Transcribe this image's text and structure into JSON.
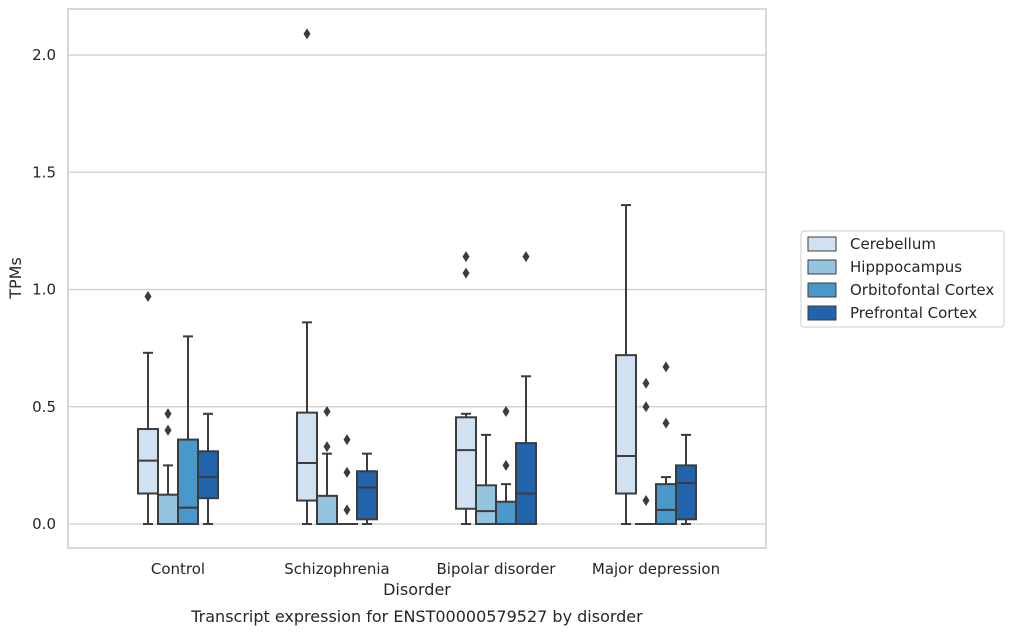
{
  "chart_data": {
    "type": "box",
    "title": "",
    "caption": "Transcript expression for ENST00000579527 by disorder",
    "xlabel": "Disorder",
    "ylabel": "TPMs",
    "ylim": [
      -0.1,
      2.2
    ],
    "yticks": [
      "0.0",
      "0.5",
      "1.0",
      "1.5",
      "2.0"
    ],
    "ytick_values": [
      0.0,
      0.5,
      1.0,
      1.5,
      2.0
    ],
    "grid": true,
    "legend_position": "right",
    "categories": [
      "Control",
      "Schizophrenia",
      "Bipolar disorder",
      "Major depression"
    ],
    "series": [
      {
        "name": "Cerebellum",
        "color": "#d0e1f2",
        "boxes": [
          {
            "whislo": 0.0,
            "q1": 0.13,
            "med": 0.27,
            "q3": 0.405,
            "whishi": 0.73,
            "fliers": [
              0.97
            ]
          },
          {
            "whislo": 0.0,
            "q1": 0.1,
            "med": 0.26,
            "q3": 0.475,
            "whishi": 0.86,
            "fliers": [
              2.09
            ]
          },
          {
            "whislo": 0.0,
            "q1": 0.065,
            "med": 0.315,
            "q3": 0.455,
            "whishi": 0.47,
            "fliers": [
              1.07,
              1.14
            ]
          },
          {
            "whislo": 0.0,
            "q1": 0.13,
            "med": 0.29,
            "q3": 0.72,
            "whishi": 1.36,
            "fliers": []
          }
        ]
      },
      {
        "name": "Hipppocampus",
        "color": "#94c4df",
        "boxes": [
          {
            "whislo": 0.0,
            "q1": 0.0,
            "med": 0.0,
            "q3": 0.125,
            "whishi": 0.25,
            "fliers": [
              0.4,
              0.47
            ]
          },
          {
            "whislo": 0.0,
            "q1": 0.0,
            "med": 0.0,
            "q3": 0.12,
            "whishi": 0.3,
            "fliers": [
              0.33,
              0.48
            ]
          },
          {
            "whislo": 0.0,
            "q1": 0.0,
            "med": 0.055,
            "q3": 0.165,
            "whishi": 0.38,
            "fliers": []
          },
          {
            "whislo": 0.0,
            "q1": 0.0,
            "med": 0.0,
            "q3": 0.0,
            "whishi": 0.0,
            "fliers": [
              0.1,
              0.5,
              0.6
            ]
          }
        ]
      },
      {
        "name": "Orbitofontal Cortex",
        "color": "#4a98c9",
        "boxes": [
          {
            "whislo": 0.0,
            "q1": 0.0,
            "med": 0.07,
            "q3": 0.36,
            "whishi": 0.8,
            "fliers": []
          },
          {
            "whislo": 0.0,
            "q1": 0.0,
            "med": 0.0,
            "q3": 0.0,
            "whishi": 0.0,
            "fliers": [
              0.06,
              0.22,
              0.36
            ]
          },
          {
            "whislo": 0.0,
            "q1": 0.0,
            "med": 0.0,
            "q3": 0.095,
            "whishi": 0.17,
            "fliers": [
              0.25,
              0.48
            ]
          },
          {
            "whislo": 0.0,
            "q1": 0.0,
            "med": 0.06,
            "q3": 0.17,
            "whishi": 0.2,
            "fliers": [
              0.43,
              0.67
            ]
          }
        ]
      },
      {
        "name": "Prefrontal Cortex",
        "color": "#2164ab",
        "boxes": [
          {
            "whislo": 0.0,
            "q1": 0.11,
            "med": 0.2,
            "q3": 0.31,
            "whishi": 0.47,
            "fliers": []
          },
          {
            "whislo": 0.0,
            "q1": 0.02,
            "med": 0.155,
            "q3": 0.225,
            "whishi": 0.3,
            "fliers": []
          },
          {
            "whislo": 0.0,
            "q1": 0.0,
            "med": 0.13,
            "q3": 0.345,
            "whishi": 0.63,
            "fliers": [
              1.14
            ]
          },
          {
            "whislo": 0.0,
            "q1": 0.02,
            "med": 0.175,
            "q3": 0.25,
            "whishi": 0.38,
            "fliers": []
          }
        ]
      }
    ]
  }
}
